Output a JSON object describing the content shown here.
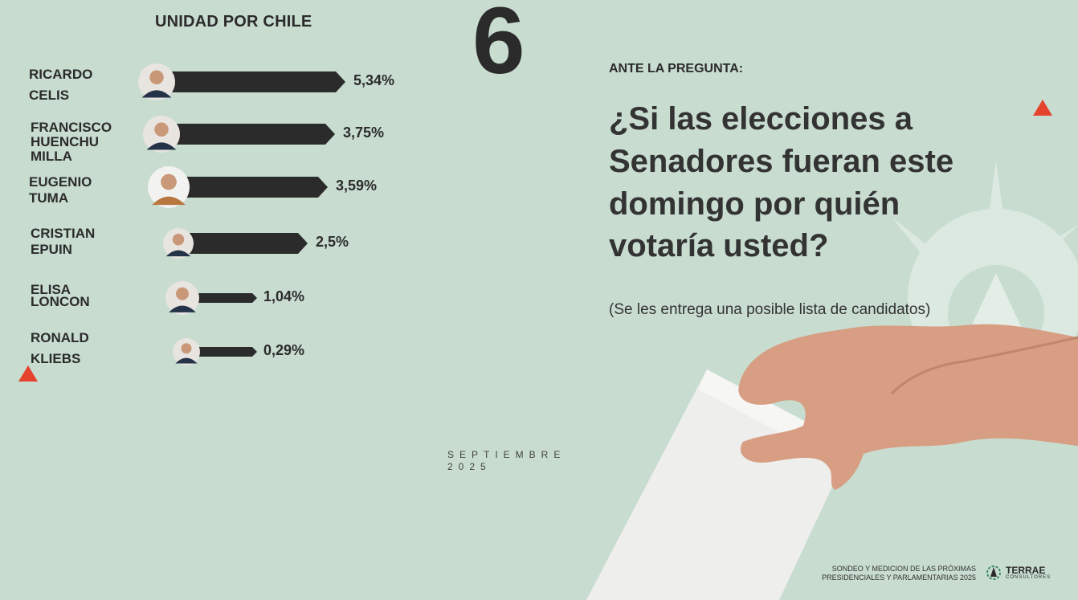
{
  "section_title": "UNIDAD POR CHILE",
  "page_number": "6",
  "prompt_label": "ANTE LA PREGUNTA:",
  "question": "¿Si las elecciones a Senadores fueran este domingo por quién votaría usted?",
  "note": "(Se les entrega una posible lista de candidatos)",
  "month": "SEPTIEMBRE",
  "year": "2025",
  "footer": {
    "line1": "SONDEO Y MEDICION DE LAS PRÓXIMAS",
    "line2": "PRESIDENCIALES Y PARLAMENTARIAS 2025"
  },
  "brand": {
    "name": "TERRAE",
    "sub": "CONSULTORES"
  },
  "colors": {
    "background": "#c8dcd0",
    "bar": "#2b2b2b",
    "accent": "#e5432e"
  },
  "icons": [
    "ballot-hand-icon",
    "compass-watermark-icon",
    "red-arrow-icon",
    "terrae-logo-icon"
  ],
  "chart_data": {
    "type": "bar",
    "orientation": "horizontal",
    "title": "UNIDAD POR CHILE",
    "categories": [
      "RICARDO CELIS",
      "FRANCISCO HUENCHUMILLA",
      "EUGENIO TUMA",
      "CRISTIAN EPUIN",
      "ELISA LONCON",
      "RONALD KLIEBS"
    ],
    "values": [
      5.34,
      3.75,
      3.59,
      2.5,
      1.04,
      0.29
    ],
    "value_labels": [
      "5,34%",
      "3,75%",
      "3,59%",
      "2,5%",
      "1,04%",
      "0,29%"
    ],
    "name_lines": [
      [
        "RICARDO",
        "CELIS"
      ],
      [
        "FRANCISCO",
        "HUENCHU",
        "MILLA"
      ],
      [
        "EUGENIO",
        "TUMA"
      ],
      [
        "CRISTIAN",
        "EPUIN"
      ],
      [
        "ELISA",
        "LONCON"
      ],
      [
        "RONALD",
        "KLIEBS"
      ]
    ],
    "grid": false,
    "legend": "none"
  }
}
